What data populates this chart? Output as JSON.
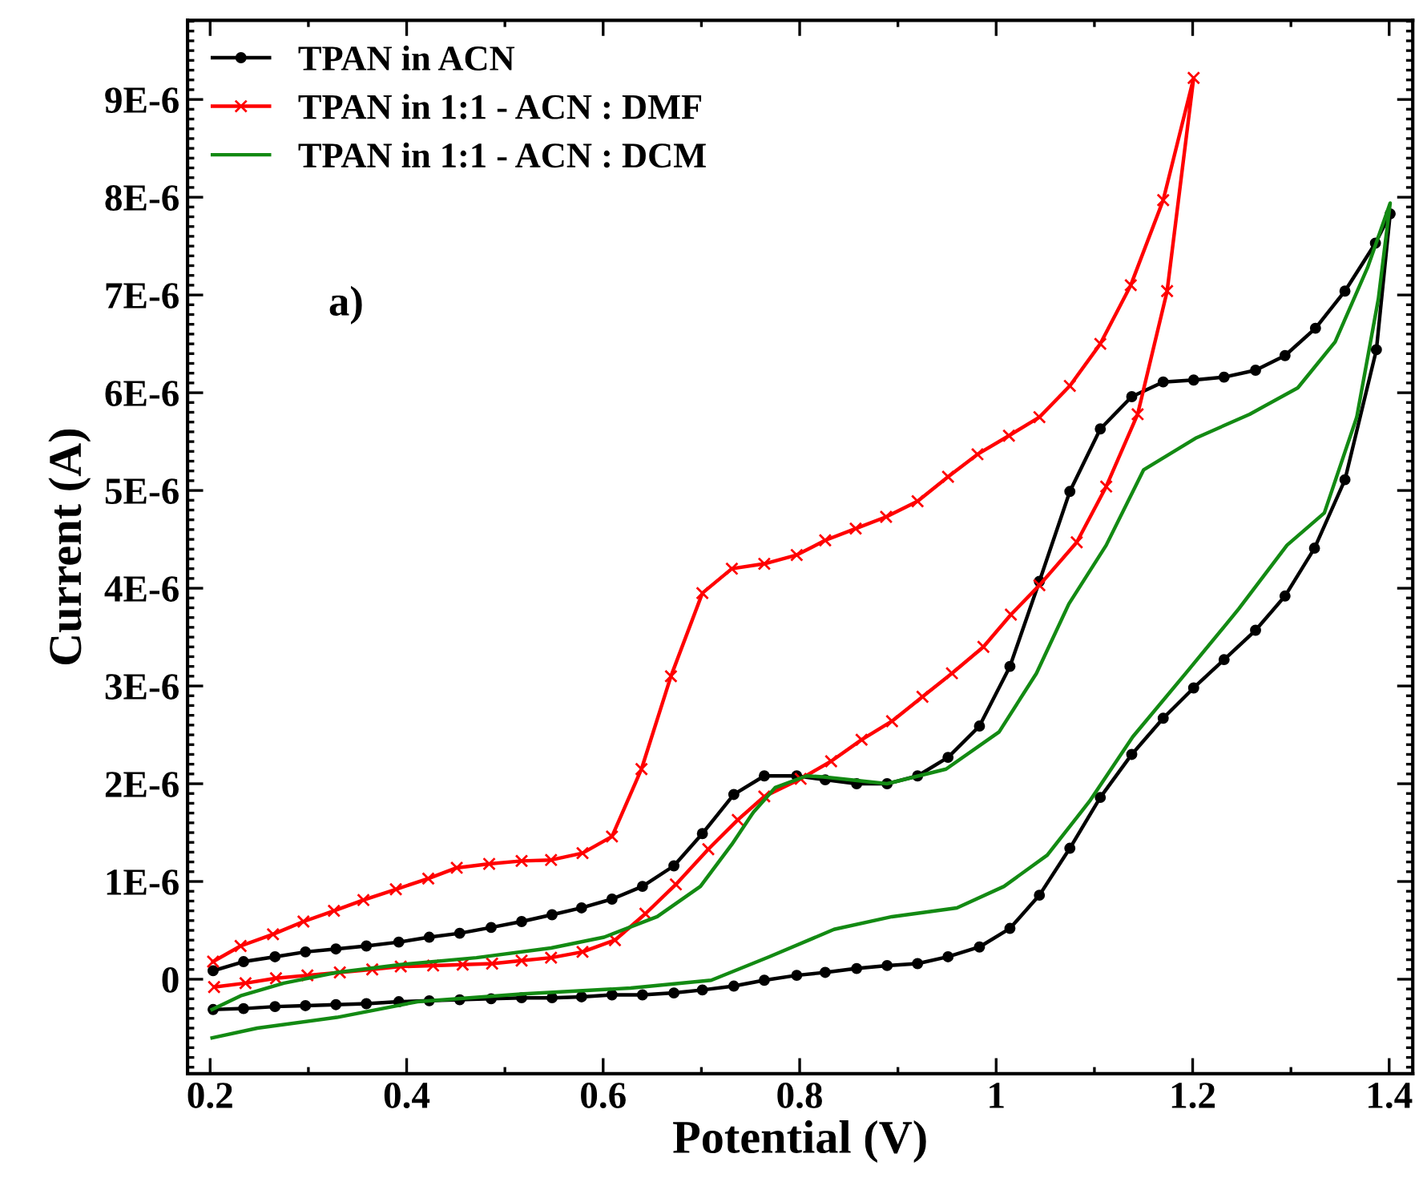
{
  "chart_data": {
    "type": "line",
    "xlabel": "Potential (V)",
    "ylabel": "Current (A)",
    "xlim": [
      0.177,
      1.424
    ],
    "ylim": [
      -9.67e-07,
      9.81e-06
    ],
    "xticks": [
      0.2,
      0.4,
      0.6,
      0.8,
      1,
      1.2,
      1.4
    ],
    "yticks": [
      0,
      {
        "value": 1e-06,
        "label": "1E-6"
      },
      {
        "value": 2e-06,
        "label": "2E-6"
      },
      {
        "value": 3e-06,
        "label": "3E-6"
      },
      {
        "value": 4e-06,
        "label": "4E-6"
      },
      {
        "value": 5e-06,
        "label": "5E-6"
      },
      {
        "value": 6e-06,
        "label": "6E-6"
      },
      {
        "value": 7e-06,
        "label": "7E-6"
      },
      {
        "value": 8e-06,
        "label": "8E-6"
      },
      {
        "value": 9e-06,
        "label": "9E-6"
      }
    ],
    "grid": false,
    "legend": "top left",
    "annotations": [
      "a)"
    ],
    "series": [
      {
        "name": "TPAN in ACN",
        "color": "#000000",
        "marker": "circle",
        "line_style": "solid",
        "x": [
          0.203,
          0.234,
          0.266,
          0.297,
          0.328,
          0.359,
          0.392,
          0.423,
          0.454,
          0.486,
          0.517,
          0.548,
          0.578,
          0.609,
          0.64,
          0.672,
          0.701,
          0.733,
          0.764,
          0.797,
          0.826,
          0.858,
          0.889,
          0.92,
          0.951,
          0.983,
          1.014,
          1.044,
          1.075,
          1.106,
          1.138,
          1.17,
          1.201,
          1.232,
          1.264,
          1.294,
          1.325,
          1.355,
          1.386,
          1.401,
          1.387,
          1.355,
          1.324,
          1.294,
          1.264,
          1.232,
          1.201,
          1.17,
          1.138,
          1.106,
          1.075,
          1.044,
          1.014,
          0.983,
          0.951,
          0.92,
          0.889,
          0.858,
          0.826,
          0.797,
          0.764,
          0.733,
          0.701,
          0.672,
          0.64,
          0.609,
          0.578,
          0.548,
          0.517,
          0.486,
          0.454,
          0.423,
          0.392,
          0.359,
          0.328,
          0.297,
          0.266,
          0.234,
          0.203
        ],
        "values": [
          8.7e-08,
          1.8e-07,
          2.3e-07,
          2.8e-07,
          3.1e-07,
          3.4e-07,
          3.8e-07,
          4.3e-07,
          4.7e-07,
          5.3e-07,
          5.9e-07,
          6.6e-07,
          7.3e-07,
          8.2e-07,
          9.5e-07,
          1.16e-06,
          1.49e-06,
          1.89e-06,
          2.08e-06,
          2.08e-06,
          2.04e-06,
          2e-06,
          2e-06,
          2.08e-06,
          2.27e-06,
          2.59e-06,
          3.2e-06,
          4.07e-06,
          4.99e-06,
          5.63e-06,
          5.96e-06,
          6.11e-06,
          6.13e-06,
          6.16e-06,
          6.23e-06,
          6.38e-06,
          6.66e-06,
          7.04e-06,
          7.53e-06,
          7.83e-06,
          6.44e-06,
          5.11e-06,
          4.41e-06,
          3.92e-06,
          3.57e-06,
          3.27e-06,
          2.98e-06,
          2.67e-06,
          2.3e-06,
          1.86e-06,
          1.34e-06,
          8.6e-07,
          5.2e-07,
          3.3e-07,
          2.3e-07,
          1.6e-07,
          1.4e-07,
          1.1e-07,
          7e-08,
          4e-08,
          -1e-08,
          -7e-08,
          -1.1e-07,
          -1.4e-07,
          -1.6e-07,
          -1.6e-07,
          -1.8e-07,
          -1.9e-07,
          -1.9e-07,
          -2e-07,
          -2.1e-07,
          -2.2e-07,
          -2.3e-07,
          -2.5e-07,
          -2.6e-07,
          -2.7e-07,
          -2.8e-07,
          -3e-07,
          -3.1e-07
        ]
      },
      {
        "name": "TPAN in 1:1 - ACN : DMF",
        "color": "#ff0000",
        "marker": "cross",
        "line_style": "solid",
        "x": [
          0.203,
          0.231,
          0.264,
          0.295,
          0.326,
          0.356,
          0.389,
          0.422,
          0.451,
          0.484,
          0.517,
          0.547,
          0.579,
          0.609,
          0.639,
          0.669,
          0.701,
          0.731,
          0.764,
          0.797,
          0.826,
          0.857,
          0.888,
          0.92,
          0.951,
          0.981,
          1.013,
          1.044,
          1.075,
          1.106,
          1.137,
          1.17,
          1.201,
          1.174,
          1.144,
          1.112,
          1.082,
          1.044,
          1.015,
          0.987,
          0.955,
          0.925,
          0.894,
          0.863,
          0.832,
          0.801,
          0.764,
          0.737,
          0.707,
          0.674,
          0.643,
          0.612,
          0.579,
          0.547,
          0.517,
          0.487,
          0.457,
          0.427,
          0.394,
          0.365,
          0.332,
          0.299,
          0.267,
          0.236,
          0.204
        ],
        "values": [
          1.8e-07,
          3.4e-07,
          4.6e-07,
          5.9e-07,
          7e-07,
          8.1e-07,
          9.2e-07,
          1.03e-06,
          1.14e-06,
          1.18e-06,
          1.21e-06,
          1.22e-06,
          1.29e-06,
          1.46e-06,
          2.15e-06,
          3.1e-06,
          3.95e-06,
          4.2e-06,
          4.25e-06,
          4.34e-06,
          4.49e-06,
          4.61e-06,
          4.73e-06,
          4.89e-06,
          5.14e-06,
          5.37e-06,
          5.56e-06,
          5.75e-06,
          6.07e-06,
          6.5e-06,
          7.1e-06,
          7.97e-06,
          9.22e-06,
          7.04e-06,
          5.78e-06,
          5.04e-06,
          4.47e-06,
          4.03e-06,
          3.73e-06,
          3.4e-06,
          3.13e-06,
          2.89e-06,
          2.64e-06,
          2.45e-06,
          2.23e-06,
          2.05e-06,
          1.87e-06,
          1.63e-06,
          1.33e-06,
          9.7e-07,
          6.7e-07,
          4e-07,
          2.8e-07,
          2.2e-07,
          1.9e-07,
          1.6e-07,
          1.5e-07,
          1.4e-07,
          1.3e-07,
          1e-07,
          7e-08,
          4e-08,
          1e-08,
          -4e-08,
          -8e-08
        ]
      },
      {
        "name": "TPAN in 1:1 - ACN : DCM",
        "color": "#138a13",
        "marker": "none",
        "line_style": "solid",
        "x": [
          0.202,
          0.231,
          0.275,
          0.329,
          0.394,
          0.471,
          0.547,
          0.601,
          0.655,
          0.699,
          0.731,
          0.753,
          0.775,
          0.807,
          0.824,
          0.889,
          0.949,
          1.003,
          1.041,
          1.074,
          1.112,
          1.15,
          1.204,
          1.258,
          1.307,
          1.345,
          1.378,
          1.401,
          1.389,
          1.367,
          1.334,
          1.296,
          1.247,
          1.193,
          1.139,
          1.095,
          1.052,
          1.008,
          0.96,
          0.894,
          0.835,
          0.769,
          0.71,
          0.628,
          0.519,
          0.411,
          0.329,
          0.248,
          0.202
        ],
        "values": [
          -3.1e-07,
          -1.7e-07,
          -4e-08,
          7e-08,
          1.5e-07,
          2.2e-07,
          3.2e-07,
          4.3e-07,
          6.4e-07,
          9.5e-07,
          1.38e-06,
          1.71e-06,
          1.96e-06,
          2.08e-06,
          2.07e-06,
          2e-06,
          2.15e-06,
          2.53e-06,
          3.13e-06,
          3.84e-06,
          4.44e-06,
          5.21e-06,
          5.54e-06,
          5.78e-06,
          6.05e-06,
          6.52e-06,
          7.28e-06,
          7.94e-06,
          6.96e-06,
          5.75e-06,
          4.77e-06,
          4.44e-06,
          3.79e-06,
          3.13e-06,
          2.48e-06,
          1.82e-06,
          1.27e-06,
          9.5e-07,
          7.3e-07,
          6.4e-07,
          5.1e-07,
          2.3e-07,
          -1e-08,
          -9e-08,
          -1.5e-07,
          -2.3e-07,
          -3.9e-07,
          -5e-07,
          -6e-07
        ]
      }
    ]
  }
}
